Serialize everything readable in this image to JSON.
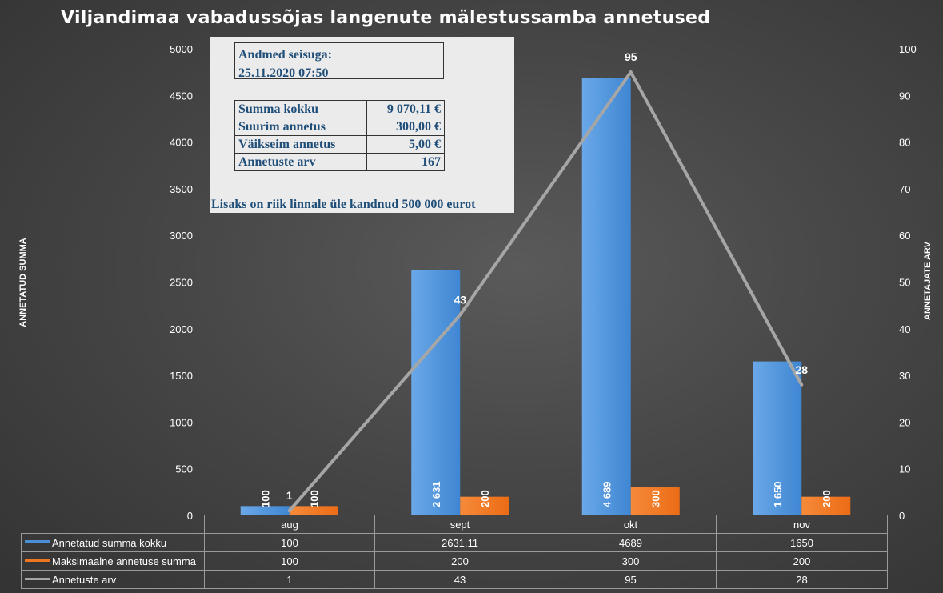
{
  "title": "Viljandimaa vabadussõjas langenute mälestussamba annetused",
  "info": {
    "header_line1": "Andmed seisuga:",
    "header_line2": "25.11.2020 07:50",
    "rows": [
      {
        "label": "Summa kokku",
        "value": "9 070,11 €"
      },
      {
        "label": "Suurim annetus",
        "value": "300,00 €"
      },
      {
        "label": "Väikseim annetus",
        "value": "5,00 €"
      },
      {
        "label": "Annetuste arv",
        "value": "167"
      }
    ],
    "note": "Lisaks on riik linnale üle kandnud 500 000 eurot"
  },
  "chart_data": {
    "type": "bar",
    "title": "Viljandimaa vabadussõjas langenute mälestussamba annetused",
    "categories": [
      "aug",
      "sept",
      "okt",
      "nov"
    ],
    "ylabel": "ANNETATUD SUMMA",
    "y2label": "ANNETAJATE ARV",
    "ylim": [
      0,
      5000
    ],
    "y2lim": [
      0,
      100
    ],
    "yticks": [
      "0",
      "500",
      "1000",
      "1500",
      "2000",
      "2500",
      "3000",
      "3500",
      "4000",
      "4500",
      "5000"
    ],
    "y2ticks": [
      "0",
      "10",
      "20",
      "30",
      "40",
      "50",
      "60",
      "70",
      "80",
      "90",
      "100"
    ],
    "series": [
      {
        "name": "Annetatud summa kokku",
        "type": "bar",
        "axis": "left",
        "color": "#4a8fd6",
        "values": [
          100,
          2631.11,
          4689,
          1650
        ],
        "labels": [
          "100",
          "2 631",
          "4 689",
          "1 650"
        ],
        "table": [
          "100",
          "2631,11",
          "4689",
          "1650"
        ]
      },
      {
        "name": "Maksimaalne annetuse summa",
        "type": "bar",
        "axis": "left",
        "color": "#f07520",
        "values": [
          100,
          200,
          300,
          200
        ],
        "labels": [
          "100",
          "200",
          "300",
          "200"
        ],
        "table": [
          "100",
          "200",
          "300",
          "200"
        ]
      },
      {
        "name": "Annetuste arv",
        "type": "line",
        "axis": "right",
        "color": "#a6a6a6",
        "values": [
          1,
          43,
          95,
          28
        ],
        "labels": [
          "1",
          "43",
          "95",
          "28"
        ],
        "table": [
          "1",
          "43",
          "95",
          "28"
        ]
      }
    ],
    "grid": false,
    "legend": "data-table"
  }
}
